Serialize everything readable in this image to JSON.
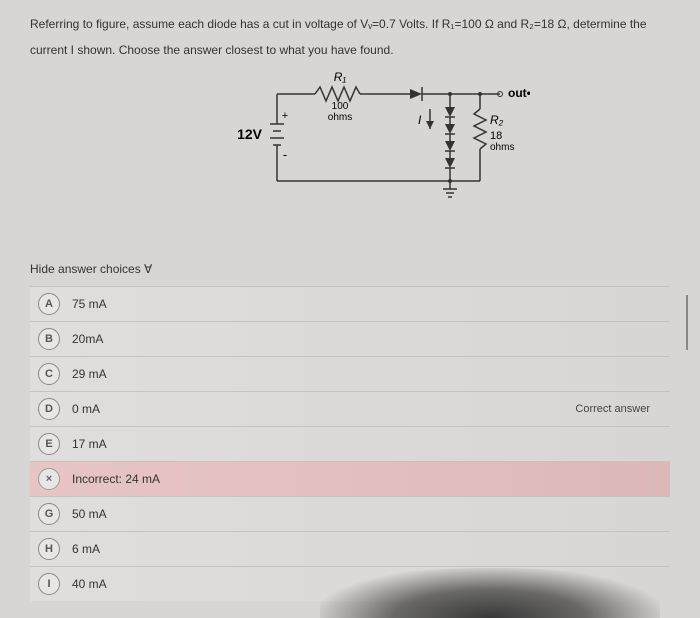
{
  "question": {
    "line1": "Referring to figure, assume each diode has a cut in voltage of Vᵥ=0.7 Volts. If R₁=100 Ω and R₂=18 Ω, determine the",
    "line2": "current I shown. Choose the answer closest to what you have found."
  },
  "circuit": {
    "source_label": "12V",
    "r1_name": "R₁",
    "r1_value": "100",
    "r1_unit": "ohms",
    "r2_name": "R₂",
    "r2_value": "18",
    "r2_unit": "ohms",
    "current_label": "I",
    "out_label": "out•••",
    "plus": "+",
    "minus": "-",
    "colors": {
      "wire": "#333333",
      "text": "#333333"
    }
  },
  "hide_label": "Hide answer choices Ɐ",
  "choices": [
    {
      "letter": "A",
      "text": "75 mA",
      "state": "normal"
    },
    {
      "letter": "B",
      "text": "20mA",
      "state": "normal"
    },
    {
      "letter": "C",
      "text": "29 mA",
      "state": "normal"
    },
    {
      "letter": "D",
      "text": "0 mA",
      "state": "correct"
    },
    {
      "letter": "E",
      "text": "17 mA",
      "state": "normal"
    },
    {
      "letter": "×",
      "text": "Incorrect: 24 mA",
      "state": "incorrect"
    },
    {
      "letter": "G",
      "text": "50 mA",
      "state": "normal"
    },
    {
      "letter": "H",
      "text": "6 mA",
      "state": "normal"
    },
    {
      "letter": "I",
      "text": "40 mA",
      "state": "normal"
    }
  ],
  "correct_answer_label": "Correct answer"
}
